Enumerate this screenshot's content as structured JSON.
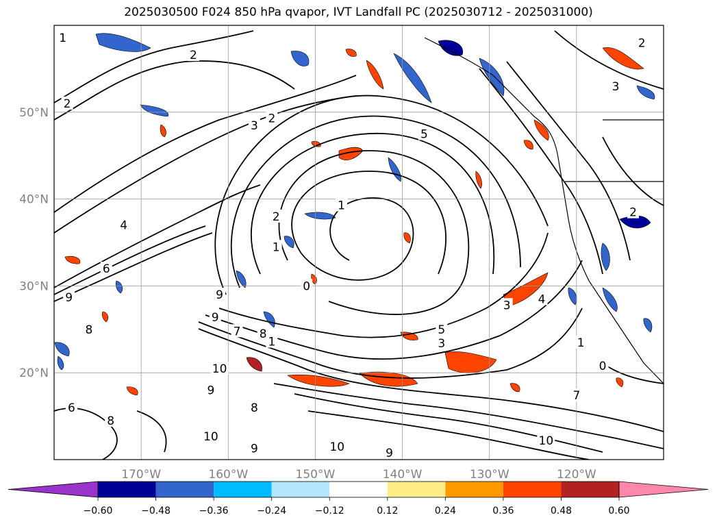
{
  "title": "2025030500 F024 850 hPa qvapor, IVT Landfall PC (2025030712 - 2025031000)",
  "map": {
    "lon_range": [
      180,
      110
    ],
    "lat_range": [
      10,
      60
    ],
    "lat_labels": [
      "20°N",
      "30°N",
      "40°N",
      "50°N"
    ],
    "lat_values": [
      20,
      30,
      40,
      50
    ],
    "lon_labels": [
      "170°W",
      "160°W",
      "150°W",
      "140°W",
      "130°W",
      "120°W"
    ],
    "lon_values": [
      170,
      160,
      150,
      140,
      130,
      120
    ],
    "grid": true
  },
  "contour_labels": [
    {
      "text": "1",
      "lon": 179,
      "lat": 58.6
    },
    {
      "text": "2",
      "lon": 178.5,
      "lat": 51
    },
    {
      "text": "2",
      "lon": 164,
      "lat": 56.6
    },
    {
      "text": "3",
      "lon": 157,
      "lat": 48.5
    },
    {
      "text": "2",
      "lon": 155,
      "lat": 49.3
    },
    {
      "text": "5",
      "lon": 137.5,
      "lat": 47.5
    },
    {
      "text": "1",
      "lon": 147,
      "lat": 39.3
    },
    {
      "text": "2",
      "lon": 154.5,
      "lat": 38
    },
    {
      "text": "4",
      "lon": 172,
      "lat": 37
    },
    {
      "text": "6",
      "lon": 174,
      "lat": 32
    },
    {
      "text": "9",
      "lon": 178.3,
      "lat": 28.7
    },
    {
      "text": "1",
      "lon": 154.5,
      "lat": 34.5
    },
    {
      "text": "0",
      "lon": 151,
      "lat": 30
    },
    {
      "text": "9",
      "lon": 161,
      "lat": 29
    },
    {
      "text": "9",
      "lon": 161.5,
      "lat": 26.4
    },
    {
      "text": "7",
      "lon": 159,
      "lat": 24.8
    },
    {
      "text": "8",
      "lon": 156,
      "lat": 24.5
    },
    {
      "text": "10",
      "lon": 161,
      "lat": 20.5
    },
    {
      "text": "9",
      "lon": 162,
      "lat": 18
    },
    {
      "text": "8",
      "lon": 157,
      "lat": 16
    },
    {
      "text": "10",
      "lon": 162,
      "lat": 12.7
    },
    {
      "text": "9",
      "lon": 157,
      "lat": 11.3
    },
    {
      "text": "10",
      "lon": 147.5,
      "lat": 11.5
    },
    {
      "text": "9",
      "lon": 141.5,
      "lat": 10.8
    },
    {
      "text": "8",
      "lon": 176,
      "lat": 25
    },
    {
      "text": "6",
      "lon": 178,
      "lat": 16
    },
    {
      "text": "8",
      "lon": 173.5,
      "lat": 14.5
    },
    {
      "text": "5",
      "lon": 135.5,
      "lat": 25
    },
    {
      "text": "3",
      "lon": 135.5,
      "lat": 23.4
    },
    {
      "text": "4",
      "lon": 124,
      "lat": 28.5
    },
    {
      "text": "3",
      "lon": 128,
      "lat": 27.8
    },
    {
      "text": "1",
      "lon": 119.5,
      "lat": 23.5
    },
    {
      "text": "0",
      "lon": 117,
      "lat": 20.8
    },
    {
      "text": "7",
      "lon": 120,
      "lat": 17.4
    },
    {
      "text": "10",
      "lon": 123.5,
      "lat": 12.2
    },
    {
      "text": "3",
      "lon": 115.5,
      "lat": 53
    },
    {
      "text": "2",
      "lon": 112.5,
      "lat": 58
    },
    {
      "text": "2",
      "lon": 113.5,
      "lat": 38.5
    },
    {
      "text": "1",
      "lon": 155,
      "lat": 23.6
    }
  ],
  "colorbar": {
    "ticks": [
      "−0.60",
      "−0.48",
      "−0.36",
      "−0.24",
      "−0.12",
      "0.12",
      "0.24",
      "0.36",
      "0.48",
      "0.60"
    ],
    "colors": [
      "#9933cc",
      "#000099",
      "#3366cc",
      "#00bbff",
      "#b3e6ff",
      "#ffffff",
      "#ffee88",
      "#ff9900",
      "#ff4400",
      "#b22222",
      "#ff88aa"
    ]
  }
}
